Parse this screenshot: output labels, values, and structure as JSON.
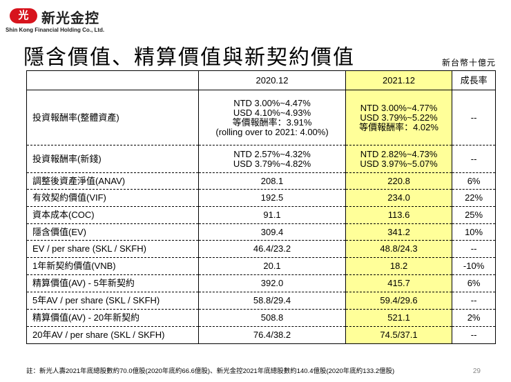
{
  "header": {
    "logo_mark": "光",
    "company_cn": "新光金控",
    "company_en": "Shin Kong Financial Holding Co., Ltd."
  },
  "title": "隱含價值、精算價值與新契約價值",
  "unit": "新台幣十億元",
  "table": {
    "columns": [
      "",
      "2020.12",
      "2021.12",
      "成長率"
    ],
    "rows": [
      [
        "投資報酬率(整體資產)",
        [
          "NTD 3.00%~4.47%",
          "USD 4.10%~4.93%",
          "等價報酬率：3.91%",
          "(rolling over to 2021: 4.00%)"
        ],
        [
          "NTD 3.00%~4.77%",
          "USD 3.79%~5.22%",
          "等價報酬率：4.02%"
        ],
        "--"
      ],
      [
        "投資報酬率(新錢)",
        [
          "NTD 2.57%~4.32%",
          "USD 3.79%~4.82%"
        ],
        [
          "NTD 2.82%~4.73%",
          "USD 3.97%~5.07%"
        ],
        "--"
      ],
      [
        "調整後資產淨值(ANAV)",
        "208.1",
        "220.8",
        "6%"
      ],
      [
        "有效契約價值(VIF)",
        "192.5",
        "234.0",
        "22%"
      ],
      [
        "資本成本(COC)",
        "91.1",
        "113.6",
        "25%"
      ],
      [
        "隱含價值(EV)",
        "309.4",
        "341.2",
        "10%"
      ],
      [
        "EV / per share (SKL / SKFH)",
        "46.4/23.2",
        "48.8/24.3",
        "--"
      ],
      [
        "1年新契約價值(VNB)",
        "20.1",
        "18.2",
        "-10%"
      ],
      [
        "精算價值(AV) - 5年新契約",
        "392.0",
        "415.7",
        "6%"
      ],
      [
        "5年AV / per share (SKL / SKFH)",
        "58.8/29.4",
        "59.4/29.6",
        "--"
      ],
      [
        "精算價值(AV) - 20年新契約",
        "508.8",
        "521.1",
        "2%"
      ],
      [
        "20年AV / per share (SKL / SKFH)",
        "76.4/38.2",
        "74.5/37.1",
        "--"
      ]
    ]
  },
  "footnote": "註：新光人壽2021年底總股數約70.0億股(2020年底約66.6億股)、新光金控2021年底總股數約140.4億股(2020年底約133.2億股)",
  "page_number": "29"
}
